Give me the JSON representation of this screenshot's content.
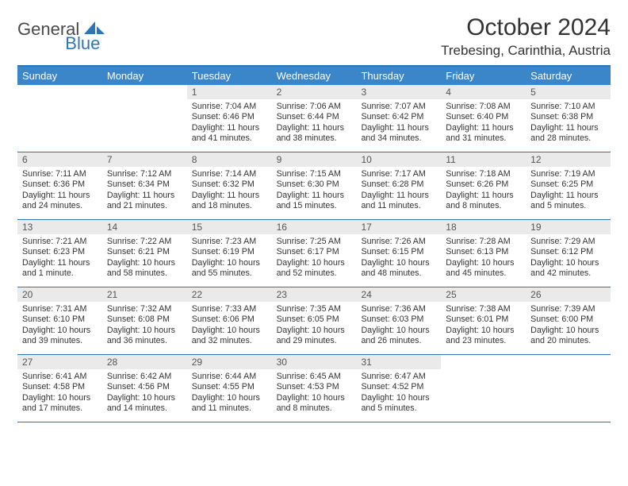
{
  "brand": {
    "part1": "General",
    "part2": "Blue"
  },
  "title": "October 2024",
  "location": "Trebesing, Carinthia, Austria",
  "colors": {
    "header_bg": "#3a86c8",
    "border": "#2e75b6",
    "daybar": "#eaeaea",
    "text": "#333333"
  },
  "dayNames": [
    "Sunday",
    "Monday",
    "Tuesday",
    "Wednesday",
    "Thursday",
    "Friday",
    "Saturday"
  ],
  "layout": {
    "firstDayColumn": 2,
    "daysInMonth": 31
  },
  "days": [
    {
      "n": 1,
      "sunrise": "7:04 AM",
      "sunset": "6:46 PM",
      "daylight": "11 hours and 41 minutes."
    },
    {
      "n": 2,
      "sunrise": "7:06 AM",
      "sunset": "6:44 PM",
      "daylight": "11 hours and 38 minutes."
    },
    {
      "n": 3,
      "sunrise": "7:07 AM",
      "sunset": "6:42 PM",
      "daylight": "11 hours and 34 minutes."
    },
    {
      "n": 4,
      "sunrise": "7:08 AM",
      "sunset": "6:40 PM",
      "daylight": "11 hours and 31 minutes."
    },
    {
      "n": 5,
      "sunrise": "7:10 AM",
      "sunset": "6:38 PM",
      "daylight": "11 hours and 28 minutes."
    },
    {
      "n": 6,
      "sunrise": "7:11 AM",
      "sunset": "6:36 PM",
      "daylight": "11 hours and 24 minutes."
    },
    {
      "n": 7,
      "sunrise": "7:12 AM",
      "sunset": "6:34 PM",
      "daylight": "11 hours and 21 minutes."
    },
    {
      "n": 8,
      "sunrise": "7:14 AM",
      "sunset": "6:32 PM",
      "daylight": "11 hours and 18 minutes."
    },
    {
      "n": 9,
      "sunrise": "7:15 AM",
      "sunset": "6:30 PM",
      "daylight": "11 hours and 15 minutes."
    },
    {
      "n": 10,
      "sunrise": "7:17 AM",
      "sunset": "6:28 PM",
      "daylight": "11 hours and 11 minutes."
    },
    {
      "n": 11,
      "sunrise": "7:18 AM",
      "sunset": "6:26 PM",
      "daylight": "11 hours and 8 minutes."
    },
    {
      "n": 12,
      "sunrise": "7:19 AM",
      "sunset": "6:25 PM",
      "daylight": "11 hours and 5 minutes."
    },
    {
      "n": 13,
      "sunrise": "7:21 AM",
      "sunset": "6:23 PM",
      "daylight": "11 hours and 1 minute."
    },
    {
      "n": 14,
      "sunrise": "7:22 AM",
      "sunset": "6:21 PM",
      "daylight": "10 hours and 58 minutes."
    },
    {
      "n": 15,
      "sunrise": "7:23 AM",
      "sunset": "6:19 PM",
      "daylight": "10 hours and 55 minutes."
    },
    {
      "n": 16,
      "sunrise": "7:25 AM",
      "sunset": "6:17 PM",
      "daylight": "10 hours and 52 minutes."
    },
    {
      "n": 17,
      "sunrise": "7:26 AM",
      "sunset": "6:15 PM",
      "daylight": "10 hours and 48 minutes."
    },
    {
      "n": 18,
      "sunrise": "7:28 AM",
      "sunset": "6:13 PM",
      "daylight": "10 hours and 45 minutes."
    },
    {
      "n": 19,
      "sunrise": "7:29 AM",
      "sunset": "6:12 PM",
      "daylight": "10 hours and 42 minutes."
    },
    {
      "n": 20,
      "sunrise": "7:31 AM",
      "sunset": "6:10 PM",
      "daylight": "10 hours and 39 minutes."
    },
    {
      "n": 21,
      "sunrise": "7:32 AM",
      "sunset": "6:08 PM",
      "daylight": "10 hours and 36 minutes."
    },
    {
      "n": 22,
      "sunrise": "7:33 AM",
      "sunset": "6:06 PM",
      "daylight": "10 hours and 32 minutes."
    },
    {
      "n": 23,
      "sunrise": "7:35 AM",
      "sunset": "6:05 PM",
      "daylight": "10 hours and 29 minutes."
    },
    {
      "n": 24,
      "sunrise": "7:36 AM",
      "sunset": "6:03 PM",
      "daylight": "10 hours and 26 minutes."
    },
    {
      "n": 25,
      "sunrise": "7:38 AM",
      "sunset": "6:01 PM",
      "daylight": "10 hours and 23 minutes."
    },
    {
      "n": 26,
      "sunrise": "7:39 AM",
      "sunset": "6:00 PM",
      "daylight": "10 hours and 20 minutes."
    },
    {
      "n": 27,
      "sunrise": "6:41 AM",
      "sunset": "4:58 PM",
      "daylight": "10 hours and 17 minutes."
    },
    {
      "n": 28,
      "sunrise": "6:42 AM",
      "sunset": "4:56 PM",
      "daylight": "10 hours and 14 minutes."
    },
    {
      "n": 29,
      "sunrise": "6:44 AM",
      "sunset": "4:55 PM",
      "daylight": "10 hours and 11 minutes."
    },
    {
      "n": 30,
      "sunrise": "6:45 AM",
      "sunset": "4:53 PM",
      "daylight": "10 hours and 8 minutes."
    },
    {
      "n": 31,
      "sunrise": "6:47 AM",
      "sunset": "4:52 PM",
      "daylight": "10 hours and 5 minutes."
    }
  ],
  "labels": {
    "sunrise": "Sunrise:",
    "sunset": "Sunset:",
    "daylight": "Daylight:"
  }
}
